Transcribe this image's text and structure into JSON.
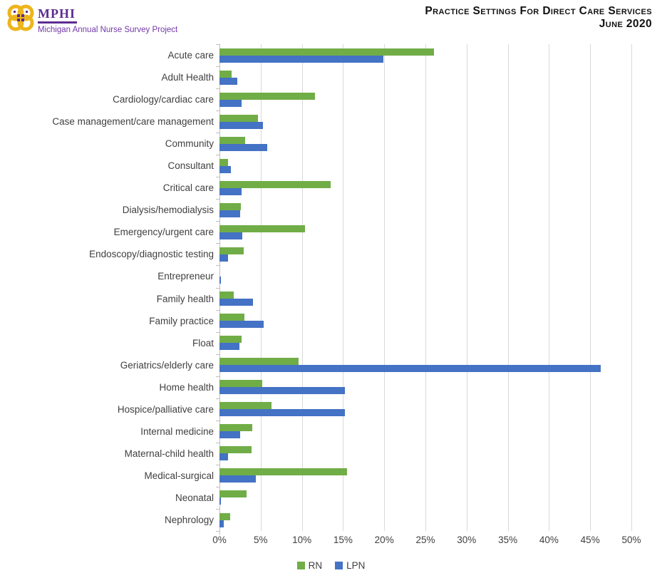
{
  "header": {
    "logo": {
      "acronym": "MPHI",
      "tagline": "Michigan Annual Nurse Survey Project",
      "icon": "quatrefoil-knot-icon",
      "accent_purple": "#5C2D91",
      "accent_gold": "#EDB51C"
    },
    "title_line1": "Practice Settings For Direct Care Services",
    "title_line2": "June 2020"
  },
  "chart_data": {
    "type": "bar",
    "orientation": "horizontal",
    "title": "Practice Settings For Direct Care Services",
    "subtitle": "June 2020",
    "grid": true,
    "legend_position": "bottom",
    "x_axis": {
      "min": 0,
      "max": 50,
      "step": 5,
      "unit": "%",
      "tick_labels": [
        "0%",
        "5%",
        "10%",
        "15%",
        "20%",
        "25%",
        "30%",
        "35%",
        "40%",
        "45%",
        "50%"
      ]
    },
    "categories": [
      "Acute care",
      "Adult Health",
      "Cardiology/cardiac care",
      "Case management/care management",
      "Community",
      "Consultant",
      "Critical care",
      "Dialysis/hemodialysis",
      "Emergency/urgent care",
      "Endoscopy/diagnostic testing",
      "Entrepreneur",
      "Family health",
      "Family practice",
      "Float",
      "Geriatrics/elderly care",
      "Home health",
      "Hospice/palliative care",
      "Internal medicine",
      "Maternal-child health",
      "Medical-surgical",
      "Neonatal",
      "Nephrology"
    ],
    "series": [
      {
        "name": "RN",
        "color": "#70AD47",
        "values": [
          26.0,
          1.5,
          11.6,
          4.7,
          3.1,
          1.0,
          13.5,
          2.6,
          10.4,
          2.9,
          0.0,
          1.7,
          3.0,
          2.7,
          9.6,
          5.2,
          6.3,
          4.0,
          3.9,
          15.5,
          3.3,
          1.3
        ]
      },
      {
        "name": "LPN",
        "color": "#4472C4",
        "values": [
          19.9,
          2.2,
          2.7,
          5.3,
          5.8,
          1.4,
          2.7,
          2.5,
          2.8,
          1.0,
          0.2,
          4.1,
          5.4,
          2.4,
          46.3,
          15.2,
          15.2,
          2.5,
          1.0,
          4.4,
          0.2,
          0.5
        ]
      }
    ],
    "gridline_color": "#D9D9D9",
    "axis_line_color": "#BFBFBF"
  }
}
